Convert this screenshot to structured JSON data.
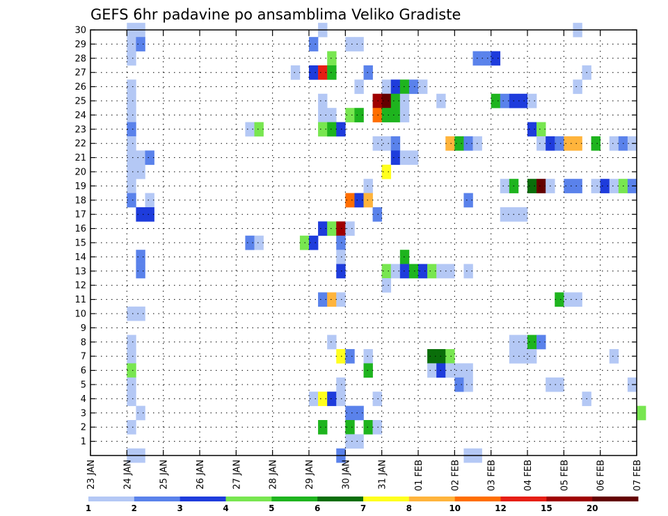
{
  "chart_data": {
    "type": "heatmap",
    "title": "GEFS 6hr padavine po ansamblima Veliko Gradiste",
    "x_tick_labels": [
      "23 JAN",
      "24 JAN",
      "25 JAN",
      "26 JAN",
      "27 JAN",
      "28 JAN",
      "29 JAN",
      "30 JAN",
      "31 JAN",
      "01 FEB",
      "02 FEB",
      "03 FEB",
      "04 FEB",
      "05 FEB",
      "06 FEB",
      "07 FEB"
    ],
    "y_tick_labels": [
      "1",
      "2",
      "3",
      "4",
      "5",
      "6",
      "7",
      "8",
      "9",
      "10",
      "11",
      "12",
      "13",
      "14",
      "15",
      "16",
      "17",
      "18",
      "19",
      "20",
      "21",
      "22",
      "23",
      "24",
      "25",
      "26",
      "27",
      "28",
      "29",
      "30"
    ],
    "x_range_days": [
      0,
      15
    ],
    "y_range": [
      0,
      30
    ],
    "steps_per_day": 4,
    "grid": true,
    "colorbar": {
      "labels": [
        "1",
        "2",
        "3",
        "4",
        "5",
        "6",
        "7",
        "8",
        "10",
        "12",
        "15",
        "20"
      ],
      "colors": [
        "#b4c8f5",
        "#5a82eb",
        "#1e3cdc",
        "#78e650",
        "#1eb41e",
        "#0a6e0a",
        "#ffff1e",
        "#ffb43c",
        "#ff6e00",
        "#e61e14",
        "#a00000",
        "#640000"
      ],
      "levels": [
        1,
        2,
        3,
        4,
        5,
        6,
        7,
        8,
        10,
        12,
        15,
        20
      ]
    },
    "cells": [
      {
        "m": 30,
        "t": 4,
        "c": 0
      },
      {
        "m": 30,
        "t": 5,
        "c": 0
      },
      {
        "m": 30,
        "t": 25,
        "c": 0
      },
      {
        "m": 30,
        "t": 53,
        "c": 0
      },
      {
        "m": 29,
        "t": 4,
        "c": 0
      },
      {
        "m": 29,
        "t": 5,
        "c": 1
      },
      {
        "m": 29,
        "t": 24,
        "c": 1
      },
      {
        "m": 29,
        "t": 28,
        "c": 0
      },
      {
        "m": 29,
        "t": 29,
        "c": 0
      },
      {
        "m": 28,
        "t": 4,
        "c": 0
      },
      {
        "m": 28,
        "t": 26,
        "c": 3
      },
      {
        "m": 28,
        "t": 42,
        "c": 1
      },
      {
        "m": 28,
        "t": 43,
        "c": 1
      },
      {
        "m": 28,
        "t": 44,
        "c": 2
      },
      {
        "m": 27,
        "t": 22,
        "c": 0
      },
      {
        "m": 27,
        "t": 24,
        "c": 2
      },
      {
        "m": 27,
        "t": 25,
        "c": 9
      },
      {
        "m": 27,
        "t": 26,
        "c": 4
      },
      {
        "m": 27,
        "t": 30,
        "c": 1
      },
      {
        "m": 27,
        "t": 54,
        "c": 0
      },
      {
        "m": 26,
        "t": 4,
        "c": 0
      },
      {
        "m": 26,
        "t": 29,
        "c": 0
      },
      {
        "m": 26,
        "t": 32,
        "c": 0
      },
      {
        "m": 26,
        "t": 33,
        "c": 2
      },
      {
        "m": 26,
        "t": 34,
        "c": 4
      },
      {
        "m": 26,
        "t": 35,
        "c": 1
      },
      {
        "m": 26,
        "t": 36,
        "c": 0
      },
      {
        "m": 26,
        "t": 53,
        "c": 0
      },
      {
        "m": 25,
        "t": 4,
        "c": 0
      },
      {
        "m": 25,
        "t": 25,
        "c": 0
      },
      {
        "m": 25,
        "t": 31,
        "c": 10
      },
      {
        "m": 25,
        "t": 32,
        "c": 11
      },
      {
        "m": 25,
        "t": 33,
        "c": 4
      },
      {
        "m": 25,
        "t": 34,
        "c": 0
      },
      {
        "m": 25,
        "t": 38,
        "c": 0
      },
      {
        "m": 25,
        "t": 44,
        "c": 4
      },
      {
        "m": 25,
        "t": 45,
        "c": 1
      },
      {
        "m": 25,
        "t": 46,
        "c": 2
      },
      {
        "m": 25,
        "t": 47,
        "c": 2
      },
      {
        "m": 25,
        "t": 48,
        "c": 0
      },
      {
        "m": 24,
        "t": 4,
        "c": 0
      },
      {
        "m": 24,
        "t": 25,
        "c": 0
      },
      {
        "m": 24,
        "t": 26,
        "c": 0
      },
      {
        "m": 24,
        "t": 28,
        "c": 3
      },
      {
        "m": 24,
        "t": 29,
        "c": 4
      },
      {
        "m": 24,
        "t": 31,
        "c": 8
      },
      {
        "m": 24,
        "t": 32,
        "c": 4
      },
      {
        "m": 24,
        "t": 33,
        "c": 4
      },
      {
        "m": 24,
        "t": 34,
        "c": 0
      },
      {
        "m": 23,
        "t": 4,
        "c": 1
      },
      {
        "m": 23,
        "t": 17,
        "c": 0
      },
      {
        "m": 23,
        "t": 18,
        "c": 3
      },
      {
        "m": 23,
        "t": 25,
        "c": 3
      },
      {
        "m": 23,
        "t": 26,
        "c": 4
      },
      {
        "m": 23,
        "t": 27,
        "c": 2
      },
      {
        "m": 23,
        "t": 48,
        "c": 2
      },
      {
        "m": 23,
        "t": 49,
        "c": 3
      },
      {
        "m": 22,
        "t": 4,
        "c": 0
      },
      {
        "m": 22,
        "t": 31,
        "c": 0
      },
      {
        "m": 22,
        "t": 32,
        "c": 0
      },
      {
        "m": 22,
        "t": 33,
        "c": 1
      },
      {
        "m": 22,
        "t": 39,
        "c": 7
      },
      {
        "m": 22,
        "t": 40,
        "c": 4
      },
      {
        "m": 22,
        "t": 41,
        "c": 1
      },
      {
        "m": 22,
        "t": 42,
        "c": 0
      },
      {
        "m": 22,
        "t": 49,
        "c": 0
      },
      {
        "m": 22,
        "t": 50,
        "c": 2
      },
      {
        "m": 22,
        "t": 51,
        "c": 1
      },
      {
        "m": 22,
        "t": 52,
        "c": 7
      },
      {
        "m": 22,
        "t": 53,
        "c": 7
      },
      {
        "m": 22,
        "t": 55,
        "c": 4
      },
      {
        "m": 22,
        "t": 57,
        "c": 0
      },
      {
        "m": 22,
        "t": 58,
        "c": 1
      },
      {
        "m": 22,
        "t": 59,
        "c": 0
      },
      {
        "m": 21,
        "t": 4,
        "c": 0
      },
      {
        "m": 21,
        "t": 5,
        "c": 0
      },
      {
        "m": 21,
        "t": 6,
        "c": 1
      },
      {
        "m": 21,
        "t": 33,
        "c": 2
      },
      {
        "m": 21,
        "t": 34,
        "c": 0
      },
      {
        "m": 21,
        "t": 35,
        "c": 0
      },
      {
        "m": 20,
        "t": 4,
        "c": 0
      },
      {
        "m": 20,
        "t": 5,
        "c": 0
      },
      {
        "m": 20,
        "t": 32,
        "c": 6
      },
      {
        "m": 19,
        "t": 4,
        "c": 0
      },
      {
        "m": 19,
        "t": 30,
        "c": 0
      },
      {
        "m": 19,
        "t": 45,
        "c": 0
      },
      {
        "m": 19,
        "t": 46,
        "c": 4
      },
      {
        "m": 19,
        "t": 48,
        "c": 5
      },
      {
        "m": 19,
        "t": 49,
        "c": 11
      },
      {
        "m": 19,
        "t": 50,
        "c": 0
      },
      {
        "m": 19,
        "t": 52,
        "c": 1
      },
      {
        "m": 19,
        "t": 53,
        "c": 1
      },
      {
        "m": 19,
        "t": 55,
        "c": 0
      },
      {
        "m": 19,
        "t": 56,
        "c": 2
      },
      {
        "m": 19,
        "t": 57,
        "c": 0
      },
      {
        "m": 19,
        "t": 58,
        "c": 3
      },
      {
        "m": 19,
        "t": 59,
        "c": 1
      },
      {
        "m": 18,
        "t": 4,
        "c": 1
      },
      {
        "m": 18,
        "t": 6,
        "c": 0
      },
      {
        "m": 18,
        "t": 28,
        "c": 8
      },
      {
        "m": 18,
        "t": 29,
        "c": 2
      },
      {
        "m": 18,
        "t": 30,
        "c": 7
      },
      {
        "m": 18,
        "t": 41,
        "c": 1
      },
      {
        "m": 17,
        "t": 5,
        "c": 2
      },
      {
        "m": 17,
        "t": 6,
        "c": 2
      },
      {
        "m": 17,
        "t": 31,
        "c": 1
      },
      {
        "m": 17,
        "t": 45,
        "c": 0
      },
      {
        "m": 17,
        "t": 46,
        "c": 0
      },
      {
        "m": 17,
        "t": 47,
        "c": 0
      },
      {
        "m": 16,
        "t": 25,
        "c": 2
      },
      {
        "m": 16,
        "t": 26,
        "c": 3
      },
      {
        "m": 16,
        "t": 27,
        "c": 10
      },
      {
        "m": 16,
        "t": 28,
        "c": 0
      },
      {
        "m": 15,
        "t": 17,
        "c": 1
      },
      {
        "m": 15,
        "t": 18,
        "c": 0
      },
      {
        "m": 15,
        "t": 23,
        "c": 3
      },
      {
        "m": 15,
        "t": 24,
        "c": 2
      },
      {
        "m": 15,
        "t": 27,
        "c": 1
      },
      {
        "m": 14,
        "t": 5,
        "c": 1
      },
      {
        "m": 14,
        "t": 27,
        "c": 0
      },
      {
        "m": 14,
        "t": 34,
        "c": 4
      },
      {
        "m": 13,
        "t": 5,
        "c": 1
      },
      {
        "m": 13,
        "t": 27,
        "c": 2
      },
      {
        "m": 13,
        "t": 32,
        "c": 3
      },
      {
        "m": 13,
        "t": 33,
        "c": 0
      },
      {
        "m": 13,
        "t": 34,
        "c": 2
      },
      {
        "m": 13,
        "t": 35,
        "c": 4
      },
      {
        "m": 13,
        "t": 36,
        "c": 2
      },
      {
        "m": 13,
        "t": 37,
        "c": 3
      },
      {
        "m": 13,
        "t": 38,
        "c": 0
      },
      {
        "m": 13,
        "t": 39,
        "c": 0
      },
      {
        "m": 13,
        "t": 41,
        "c": 0
      },
      {
        "m": 12,
        "t": 32,
        "c": 0
      },
      {
        "m": 11,
        "t": 25,
        "c": 1
      },
      {
        "m": 11,
        "t": 26,
        "c": 7
      },
      {
        "m": 11,
        "t": 27,
        "c": 0
      },
      {
        "m": 11,
        "t": 51,
        "c": 4
      },
      {
        "m": 11,
        "t": 52,
        "c": 0
      },
      {
        "m": 11,
        "t": 53,
        "c": 0
      },
      {
        "m": 10,
        "t": 4,
        "c": 0
      },
      {
        "m": 10,
        "t": 5,
        "c": 0
      },
      {
        "m": 8,
        "t": 4,
        "c": 0
      },
      {
        "m": 8,
        "t": 26,
        "c": 0
      },
      {
        "m": 8,
        "t": 46,
        "c": 0
      },
      {
        "m": 8,
        "t": 47,
        "c": 0
      },
      {
        "m": 8,
        "t": 48,
        "c": 4
      },
      {
        "m": 8,
        "t": 49,
        "c": 1
      },
      {
        "m": 7,
        "t": 4,
        "c": 0
      },
      {
        "m": 7,
        "t": 27,
        "c": 6
      },
      {
        "m": 7,
        "t": 28,
        "c": 1
      },
      {
        "m": 7,
        "t": 30,
        "c": 0
      },
      {
        "m": 7,
        "t": 37,
        "c": 5
      },
      {
        "m": 7,
        "t": 38,
        "c": 5
      },
      {
        "m": 7,
        "t": 39,
        "c": 3
      },
      {
        "m": 7,
        "t": 46,
        "c": 0
      },
      {
        "m": 7,
        "t": 47,
        "c": 0
      },
      {
        "m": 7,
        "t": 48,
        "c": 0
      },
      {
        "m": 7,
        "t": 57,
        "c": 0
      },
      {
        "m": 6,
        "t": 4,
        "c": 3
      },
      {
        "m": 6,
        "t": 30,
        "c": 4
      },
      {
        "m": 6,
        "t": 37,
        "c": 0
      },
      {
        "m": 6,
        "t": 38,
        "c": 2
      },
      {
        "m": 6,
        "t": 39,
        "c": 0
      },
      {
        "m": 6,
        "t": 40,
        "c": 0
      },
      {
        "m": 6,
        "t": 41,
        "c": 0
      },
      {
        "m": 5,
        "t": 4,
        "c": 0
      },
      {
        "m": 5,
        "t": 27,
        "c": 0
      },
      {
        "m": 5,
        "t": 40,
        "c": 1
      },
      {
        "m": 5,
        "t": 41,
        "c": 0
      },
      {
        "m": 5,
        "t": 50,
        "c": 0
      },
      {
        "m": 5,
        "t": 51,
        "c": 0
      },
      {
        "m": 5,
        "t": 59,
        "c": 0
      },
      {
        "m": 4,
        "t": 4,
        "c": 0
      },
      {
        "m": 4,
        "t": 24,
        "c": 0
      },
      {
        "m": 4,
        "t": 25,
        "c": 6
      },
      {
        "m": 4,
        "t": 26,
        "c": 2
      },
      {
        "m": 4,
        "t": 27,
        "c": 0
      },
      {
        "m": 4,
        "t": 31,
        "c": 0
      },
      {
        "m": 4,
        "t": 54,
        "c": 0
      },
      {
        "m": 3,
        "t": 5,
        "c": 0
      },
      {
        "m": 3,
        "t": 28,
        "c": 1
      },
      {
        "m": 3,
        "t": 29,
        "c": 1
      },
      {
        "m": 3,
        "t": 60,
        "c": 3
      },
      {
        "m": 2,
        "t": 4,
        "c": 0
      },
      {
        "m": 2,
        "t": 25,
        "c": 4
      },
      {
        "m": 2,
        "t": 28,
        "c": 4
      },
      {
        "m": 2,
        "t": 30,
        "c": 4
      },
      {
        "m": 2,
        "t": 31,
        "c": 0
      },
      {
        "m": 1,
        "t": 28,
        "c": 0
      },
      {
        "m": 1,
        "t": 29,
        "c": 0
      },
      {
        "m": 0,
        "t": 4,
        "c": 0
      },
      {
        "m": 0,
        "t": 5,
        "c": 0
      },
      {
        "m": 0,
        "t": 27,
        "c": 1
      },
      {
        "m": 0,
        "t": 41,
        "c": 0
      },
      {
        "m": 0,
        "t": 42,
        "c": 0
      }
    ]
  }
}
